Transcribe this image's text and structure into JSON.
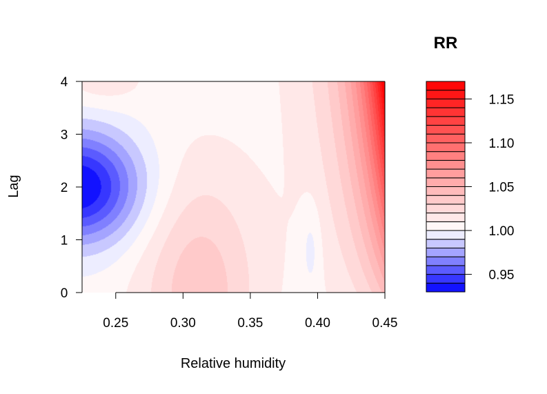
{
  "chart_data": {
    "type": "heatmap",
    "subtype": "filled-contour",
    "xlabel": "Relative humidity",
    "ylabel": "Lag",
    "xlim": [
      0.225,
      0.45
    ],
    "ylim": [
      0,
      4
    ],
    "xticks": [
      0.25,
      0.3,
      0.35,
      0.4,
      0.45
    ],
    "xtick_labels": [
      "0.25",
      "0.30",
      "0.35",
      "0.40",
      "0.45"
    ],
    "yticks": [
      0,
      1,
      2,
      3,
      4
    ],
    "ytick_labels": [
      "0",
      "1",
      "2",
      "3",
      "4"
    ],
    "legend": {
      "title": "RR",
      "placement": "right",
      "range": [
        0.93,
        1.17
      ],
      "ticks": [
        0.95,
        1.0,
        1.05,
        1.1,
        1.15
      ],
      "tick_labels": [
        "0.95",
        "1.00",
        "1.05",
        "1.10",
        "1.15"
      ],
      "level_step": 0.01,
      "low_color": "#0000ff",
      "mid_color": "#ffffff",
      "high_color": "#ff0000"
    },
    "features": [
      {
        "kind": "min",
        "x": 0.225,
        "lag": 2.0,
        "rr": 0.93
      },
      {
        "kind": "min",
        "x": 0.395,
        "lag": 0.9,
        "rr": 0.99
      },
      {
        "kind": "max",
        "x": 0.45,
        "lag": 4.0,
        "rr": 1.17
      },
      {
        "kind": "max",
        "x": 0.31,
        "lag": 0.0,
        "rr": 1.04
      }
    ]
  }
}
